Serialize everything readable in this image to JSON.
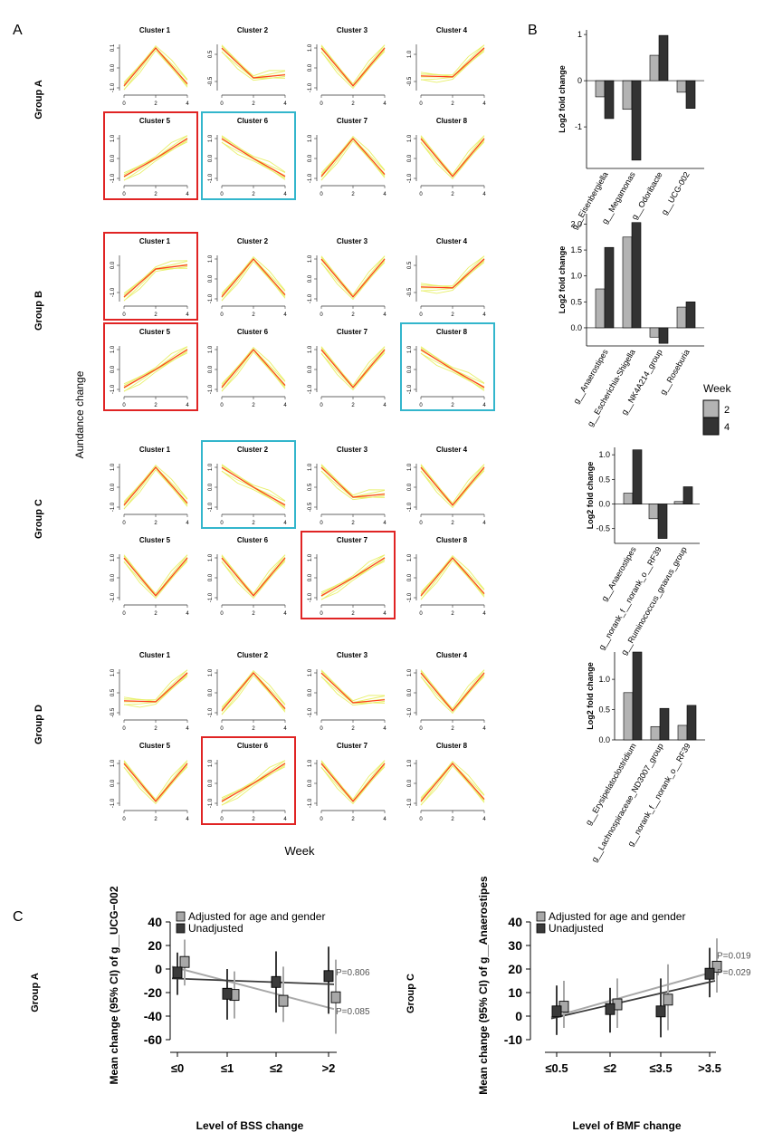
{
  "panel_labels": [
    "A",
    "B",
    "C"
  ],
  "colors": {
    "thin_lines": "#e8f06a",
    "trend_line": "#ff3b1f",
    "frame_red": "#e02424",
    "frame_cyan": "#33b6cc",
    "week2_bar": "#b3b3b3",
    "week4_bar": "#333333",
    "adjusted": "#a8a8a8",
    "unadjusted": "#3a3a3a"
  },
  "panel_a": {
    "y_axis_title": "Aundance change",
    "x_axis_title": "Week",
    "groups": [
      {
        "name": "Group A",
        "clusters": [
          {
            "title": "Cluster 1",
            "yticks": [
              "0.1",
              "0.0",
              "-1.0"
            ],
            "pattern": "peak",
            "highlight": null
          },
          {
            "title": "Cluster 2",
            "yticks": [
              "0.5",
              "-0.5"
            ],
            "pattern": "fall_flat",
            "highlight": null
          },
          {
            "title": "Cluster 3",
            "yticks": [
              "1.0",
              "0.0",
              "-1.0"
            ],
            "pattern": "valley",
            "highlight": null
          },
          {
            "title": "Cluster 4",
            "yticks": [
              "1.0",
              "-0.5"
            ],
            "pattern": "flat_rise",
            "highlight": null
          },
          {
            "title": "Cluster 5",
            "yticks": [
              "1.0",
              "0.0",
              "-1.0"
            ],
            "pattern": "rise",
            "highlight": "red"
          },
          {
            "title": "Cluster 6",
            "yticks": [
              "1.0",
              "0.0",
              "-1.0"
            ],
            "pattern": "fall",
            "highlight": "cyan"
          },
          {
            "title": "Cluster 7",
            "yticks": [
              "1.0",
              "0.0",
              "-1.0"
            ],
            "pattern": "peak",
            "highlight": null
          },
          {
            "title": "Cluster 8",
            "yticks": [
              "1.0",
              "0.0",
              "-1.0"
            ],
            "pattern": "valley",
            "highlight": null
          }
        ]
      },
      {
        "name": "Group B",
        "clusters": [
          {
            "title": "Cluster 1",
            "yticks": [
              "0.0",
              "-1.0"
            ],
            "pattern": "rise_plateau",
            "highlight": "red"
          },
          {
            "title": "Cluster 2",
            "yticks": [
              "1.0",
              "0.0",
              "-1.0"
            ],
            "pattern": "peak",
            "highlight": null
          },
          {
            "title": "Cluster 3",
            "yticks": [
              "1.0",
              "0.0",
              "-1.0"
            ],
            "pattern": "valley",
            "highlight": null
          },
          {
            "title": "Cluster 4",
            "yticks": [
              "0.5",
              "-0.5"
            ],
            "pattern": "flat_rise",
            "highlight": null
          },
          {
            "title": "Cluster 5",
            "yticks": [
              "1.0",
              "0.0",
              "-1.0"
            ],
            "pattern": "rise",
            "highlight": "red"
          },
          {
            "title": "Cluster 6",
            "yticks": [
              "1.0",
              "0.0",
              "-1.0"
            ],
            "pattern": "peak",
            "highlight": null
          },
          {
            "title": "Cluster 7",
            "yticks": [
              "1.0",
              "0.0",
              "-1.0"
            ],
            "pattern": "valley",
            "highlight": null
          },
          {
            "title": "Cluster 8",
            "yticks": [
              "1.0",
              "0.0",
              "-1.0"
            ],
            "pattern": "fall",
            "highlight": "cyan"
          }
        ]
      },
      {
        "name": "Group C",
        "clusters": [
          {
            "title": "Cluster 1",
            "yticks": [
              "1.0",
              "0.0",
              "-1.0"
            ],
            "pattern": "peak",
            "highlight": null
          },
          {
            "title": "Cluster 2",
            "yticks": [
              "1.0",
              "0.0",
              "-1.0"
            ],
            "pattern": "fall",
            "highlight": "cyan"
          },
          {
            "title": "Cluster 3",
            "yticks": [
              "1.0",
              "0.5",
              "-0.5"
            ],
            "pattern": "fall_flat",
            "highlight": null
          },
          {
            "title": "Cluster 4",
            "yticks": [
              "1.0",
              "0.0",
              "-1.0"
            ],
            "pattern": "valley",
            "highlight": null
          },
          {
            "title": "Cluster 5",
            "yticks": [
              "1.0",
              "0.0",
              "-1.0"
            ],
            "pattern": "valley",
            "highlight": null
          },
          {
            "title": "Cluster 6",
            "yticks": [
              "1.0",
              "0.0",
              "-1.0"
            ],
            "pattern": "valley",
            "highlight": null
          },
          {
            "title": "Cluster 7",
            "yticks": [
              "1.0",
              "0.0",
              "-1.0"
            ],
            "pattern": "rise",
            "highlight": "red"
          },
          {
            "title": "Cluster 8",
            "yticks": [
              "1.0",
              "0.0",
              "-1.0"
            ],
            "pattern": "peak",
            "highlight": null
          }
        ]
      },
      {
        "name": "Group D",
        "clusters": [
          {
            "title": "Cluster 1",
            "yticks": [
              "1.0",
              "0.5",
              "-0.5"
            ],
            "pattern": "flat_rise",
            "highlight": null
          },
          {
            "title": "Cluster 2",
            "yticks": [
              "1.0",
              "0.0",
              "-1.0"
            ],
            "pattern": "peak",
            "highlight": null
          },
          {
            "title": "Cluster 3",
            "yticks": [
              "1.0",
              "0.0",
              "-1.0"
            ],
            "pattern": "fall_flat",
            "highlight": null
          },
          {
            "title": "Cluster 4",
            "yticks": [
              "1.0",
              "0.0",
              "-1.0"
            ],
            "pattern": "valley",
            "highlight": null
          },
          {
            "title": "Cluster 5",
            "yticks": [
              "1.0",
              "0.0",
              "-1.0"
            ],
            "pattern": "valley",
            "highlight": null
          },
          {
            "title": "Cluster 6",
            "yticks": [
              "1.0",
              "0.0",
              "-1.0"
            ],
            "pattern": "rise",
            "highlight": "red"
          },
          {
            "title": "Cluster 7",
            "yticks": [
              "1.0",
              "0.0",
              "-1.0"
            ],
            "pattern": "valley",
            "highlight": null
          },
          {
            "title": "Cluster 8",
            "yticks": [
              "1.0",
              "0.0",
              "-1.0"
            ],
            "pattern": "peak",
            "highlight": null
          }
        ]
      }
    ]
  },
  "chart_data": [
    {
      "type": "bar",
      "ylabel": "Log2 fold change",
      "ylim": [
        -1.9,
        1.1
      ],
      "yticks": [
        -1,
        0,
        1
      ],
      "categories": [
        "g__Eisenbergiella",
        "g__Megamonas",
        "g__Odoribacte",
        "g__UCG-002"
      ],
      "series": [
        {
          "name": "2",
          "values": [
            -0.35,
            -0.62,
            0.55,
            -0.25
          ]
        },
        {
          "name": "4",
          "values": [
            -0.82,
            -1.72,
            0.98,
            -0.6
          ]
        }
      ]
    },
    {
      "type": "bar",
      "ylabel": "Log2 fold change",
      "ylim": [
        -0.35,
        2.2
      ],
      "yticks": [
        0.0,
        0.5,
        1.0,
        1.5,
        2.0
      ],
      "categories": [
        "g__Anaerostipes",
        "g__Escherichia-Shigella",
        "g__NK4A214_group",
        "g__Roseburia"
      ],
      "series": [
        {
          "name": "2",
          "values": [
            0.75,
            1.75,
            -0.18,
            0.4
          ]
        },
        {
          "name": "4",
          "values": [
            1.55,
            2.03,
            -0.3,
            0.5
          ]
        }
      ]
    },
    {
      "type": "bar",
      "ylabel": "Log2 fold change",
      "ylim": [
        -0.8,
        1.15
      ],
      "yticks": [
        -0.5,
        0.0,
        0.5,
        1.0
      ],
      "categories": [
        "g__Anaerostipes",
        "g__norank_f__norank_o__RF39",
        "g__Ruminococcus_gnavus_group"
      ],
      "series": [
        {
          "name": "2",
          "values": [
            0.22,
            -0.3,
            0.05
          ]
        },
        {
          "name": "4",
          "values": [
            1.1,
            -0.7,
            0.35
          ]
        }
      ]
    },
    {
      "type": "bar",
      "ylabel": "Log2 fold change",
      "ylim": [
        0,
        1.45
      ],
      "yticks": [
        0.0,
        0.5,
        1.0
      ],
      "categories": [
        "g__Erysipelatoclostridium",
        "g__Lachnospiraceae_ND3007_group",
        "g__norank_f__norank_o__RF39"
      ],
      "series": [
        {
          "name": "2",
          "values": [
            0.78,
            0.22,
            0.24
          ]
        },
        {
          "name": "4",
          "values": [
            1.45,
            0.52,
            0.57
          ]
        }
      ]
    },
    {
      "type": "scatter",
      "group_label": "Group A",
      "xlabel": "Level of BSS change",
      "ylabel": "Mean change (95% CI) of g__UCG−002",
      "categories": [
        "≤0",
        "≤1",
        "≤2",
        ">2"
      ],
      "ylim": [
        -60,
        40
      ],
      "yticks": [
        -60,
        -40,
        -20,
        0,
        20,
        40
      ],
      "series": [
        {
          "name": "Adjusted for age and gender",
          "values": [
            6,
            -22,
            -27,
            -24
          ],
          "ci_low": [
            -14,
            -42,
            -45,
            -55
          ],
          "ci_high": [
            25,
            -2,
            2,
            8
          ],
          "trend": [
            2,
            -34
          ],
          "p_label": "P=0.085"
        },
        {
          "name": "Unadjusted",
          "values": [
            -3,
            -21,
            -11,
            -6
          ],
          "ci_low": [
            -22,
            -43,
            -37,
            -38
          ],
          "ci_high": [
            14,
            0,
            15,
            19
          ],
          "trend": [
            -8,
            -13
          ],
          "p_label": "P=0.806"
        }
      ]
    },
    {
      "type": "scatter",
      "group_label": "Group C",
      "xlabel": "Level of BMF change",
      "ylabel": "Mean change (95% CI) of g__Anaerostipes",
      "categories": [
        "≤0.5",
        "≤2",
        "≤3.5",
        ">3.5"
      ],
      "ylim": [
        -10,
        40
      ],
      "yticks": [
        -10,
        0,
        10,
        20,
        30,
        40
      ],
      "series": [
        {
          "name": "Adjusted for age and gender",
          "values": [
            4,
            5,
            7,
            21
          ],
          "ci_low": [
            -5,
            -5,
            -6,
            10
          ],
          "ci_high": [
            15,
            16,
            22,
            33
          ],
          "trend": [
            -0.5,
            19
          ],
          "p_label": "P=0.019"
        },
        {
          "name": "Unadjusted",
          "values": [
            2,
            3,
            2,
            18
          ],
          "ci_low": [
            -8,
            -7,
            -9,
            8
          ],
          "ci_high": [
            13,
            12,
            16,
            29
          ],
          "trend": [
            -1,
            15
          ],
          "p_label": "P=0.029"
        }
      ]
    }
  ],
  "bar_legend": {
    "title": "Week",
    "items": [
      "2",
      "4"
    ]
  },
  "forest_legend": [
    "Adjusted for age and gender",
    "Unadjusted"
  ]
}
